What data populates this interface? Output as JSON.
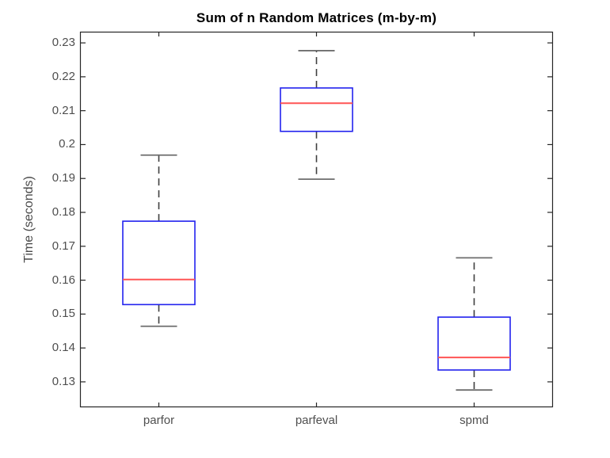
{
  "figure": {
    "title": "Sum of n Random Matrices (m-by-m)",
    "ylabel": "Time (seconds)",
    "background": "#ffffff"
  },
  "chart_data": {
    "type": "box",
    "title": "Sum of n Random Matrices (m-by-m)",
    "xlabel": "",
    "ylabel": "Time (seconds)",
    "categories": [
      "parfor",
      "parfeval",
      "spmd"
    ],
    "ylim": [
      0.1225,
      0.2333
    ],
    "yticks": [
      0.23,
      0.22,
      0.21,
      0.2,
      0.19,
      0.18,
      0.17,
      0.16,
      0.15,
      0.14,
      0.13
    ],
    "ytick_labels": [
      "0.23",
      "0.22",
      "0.21",
      "0.2",
      "0.19",
      "0.18",
      "0.17",
      "0.16",
      "0.15",
      "0.14",
      "0.13"
    ],
    "grid": false,
    "legend": "none",
    "series": [
      {
        "name": "parfor",
        "whisker_low": 0.1464,
        "q1": 0.1528,
        "median": 0.1602,
        "q3": 0.1774,
        "whisker_high": 0.1969
      },
      {
        "name": "parfeval",
        "whisker_low": 0.1898,
        "q1": 0.2039,
        "median": 0.2122,
        "q3": 0.2167,
        "whisker_high": 0.2277
      },
      {
        "name": "spmd",
        "whisker_low": 0.1276,
        "q1": 0.1335,
        "median": 0.1372,
        "q3": 0.1491,
        "whisker_high": 0.1666
      }
    ],
    "colors": {
      "box": "#2222ee",
      "median": "#ff5555",
      "whisker": "#3f3f3f",
      "whisker_cap": "#6e6e6e",
      "axis": "#262626",
      "tick_text": "#4f4f4f",
      "title_text": "#000000"
    }
  }
}
